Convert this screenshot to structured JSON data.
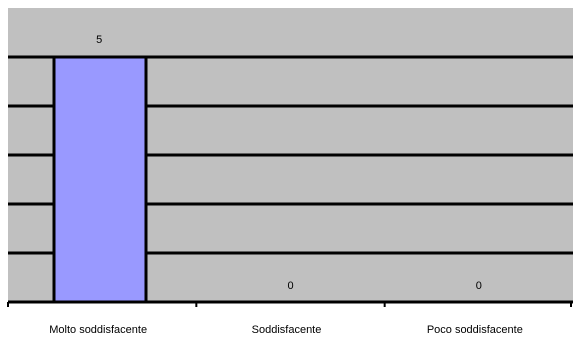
{
  "chart_data": {
    "type": "bar",
    "title": "",
    "xlabel": "",
    "ylabel": "",
    "categories": [
      "Molto soddisfacente",
      "Soddisfacente",
      "Poco soddisfacente"
    ],
    "values": [
      5,
      0,
      0
    ],
    "data_labels": [
      "5",
      "0",
      "0"
    ],
    "ylim": [
      0,
      5
    ],
    "grid": true,
    "legend": "none",
    "colors": {
      "plot_background": "#C0C0C0",
      "bar_fill": "#9999FF",
      "bar_stroke": "#000000",
      "gridline": "#000000"
    }
  }
}
